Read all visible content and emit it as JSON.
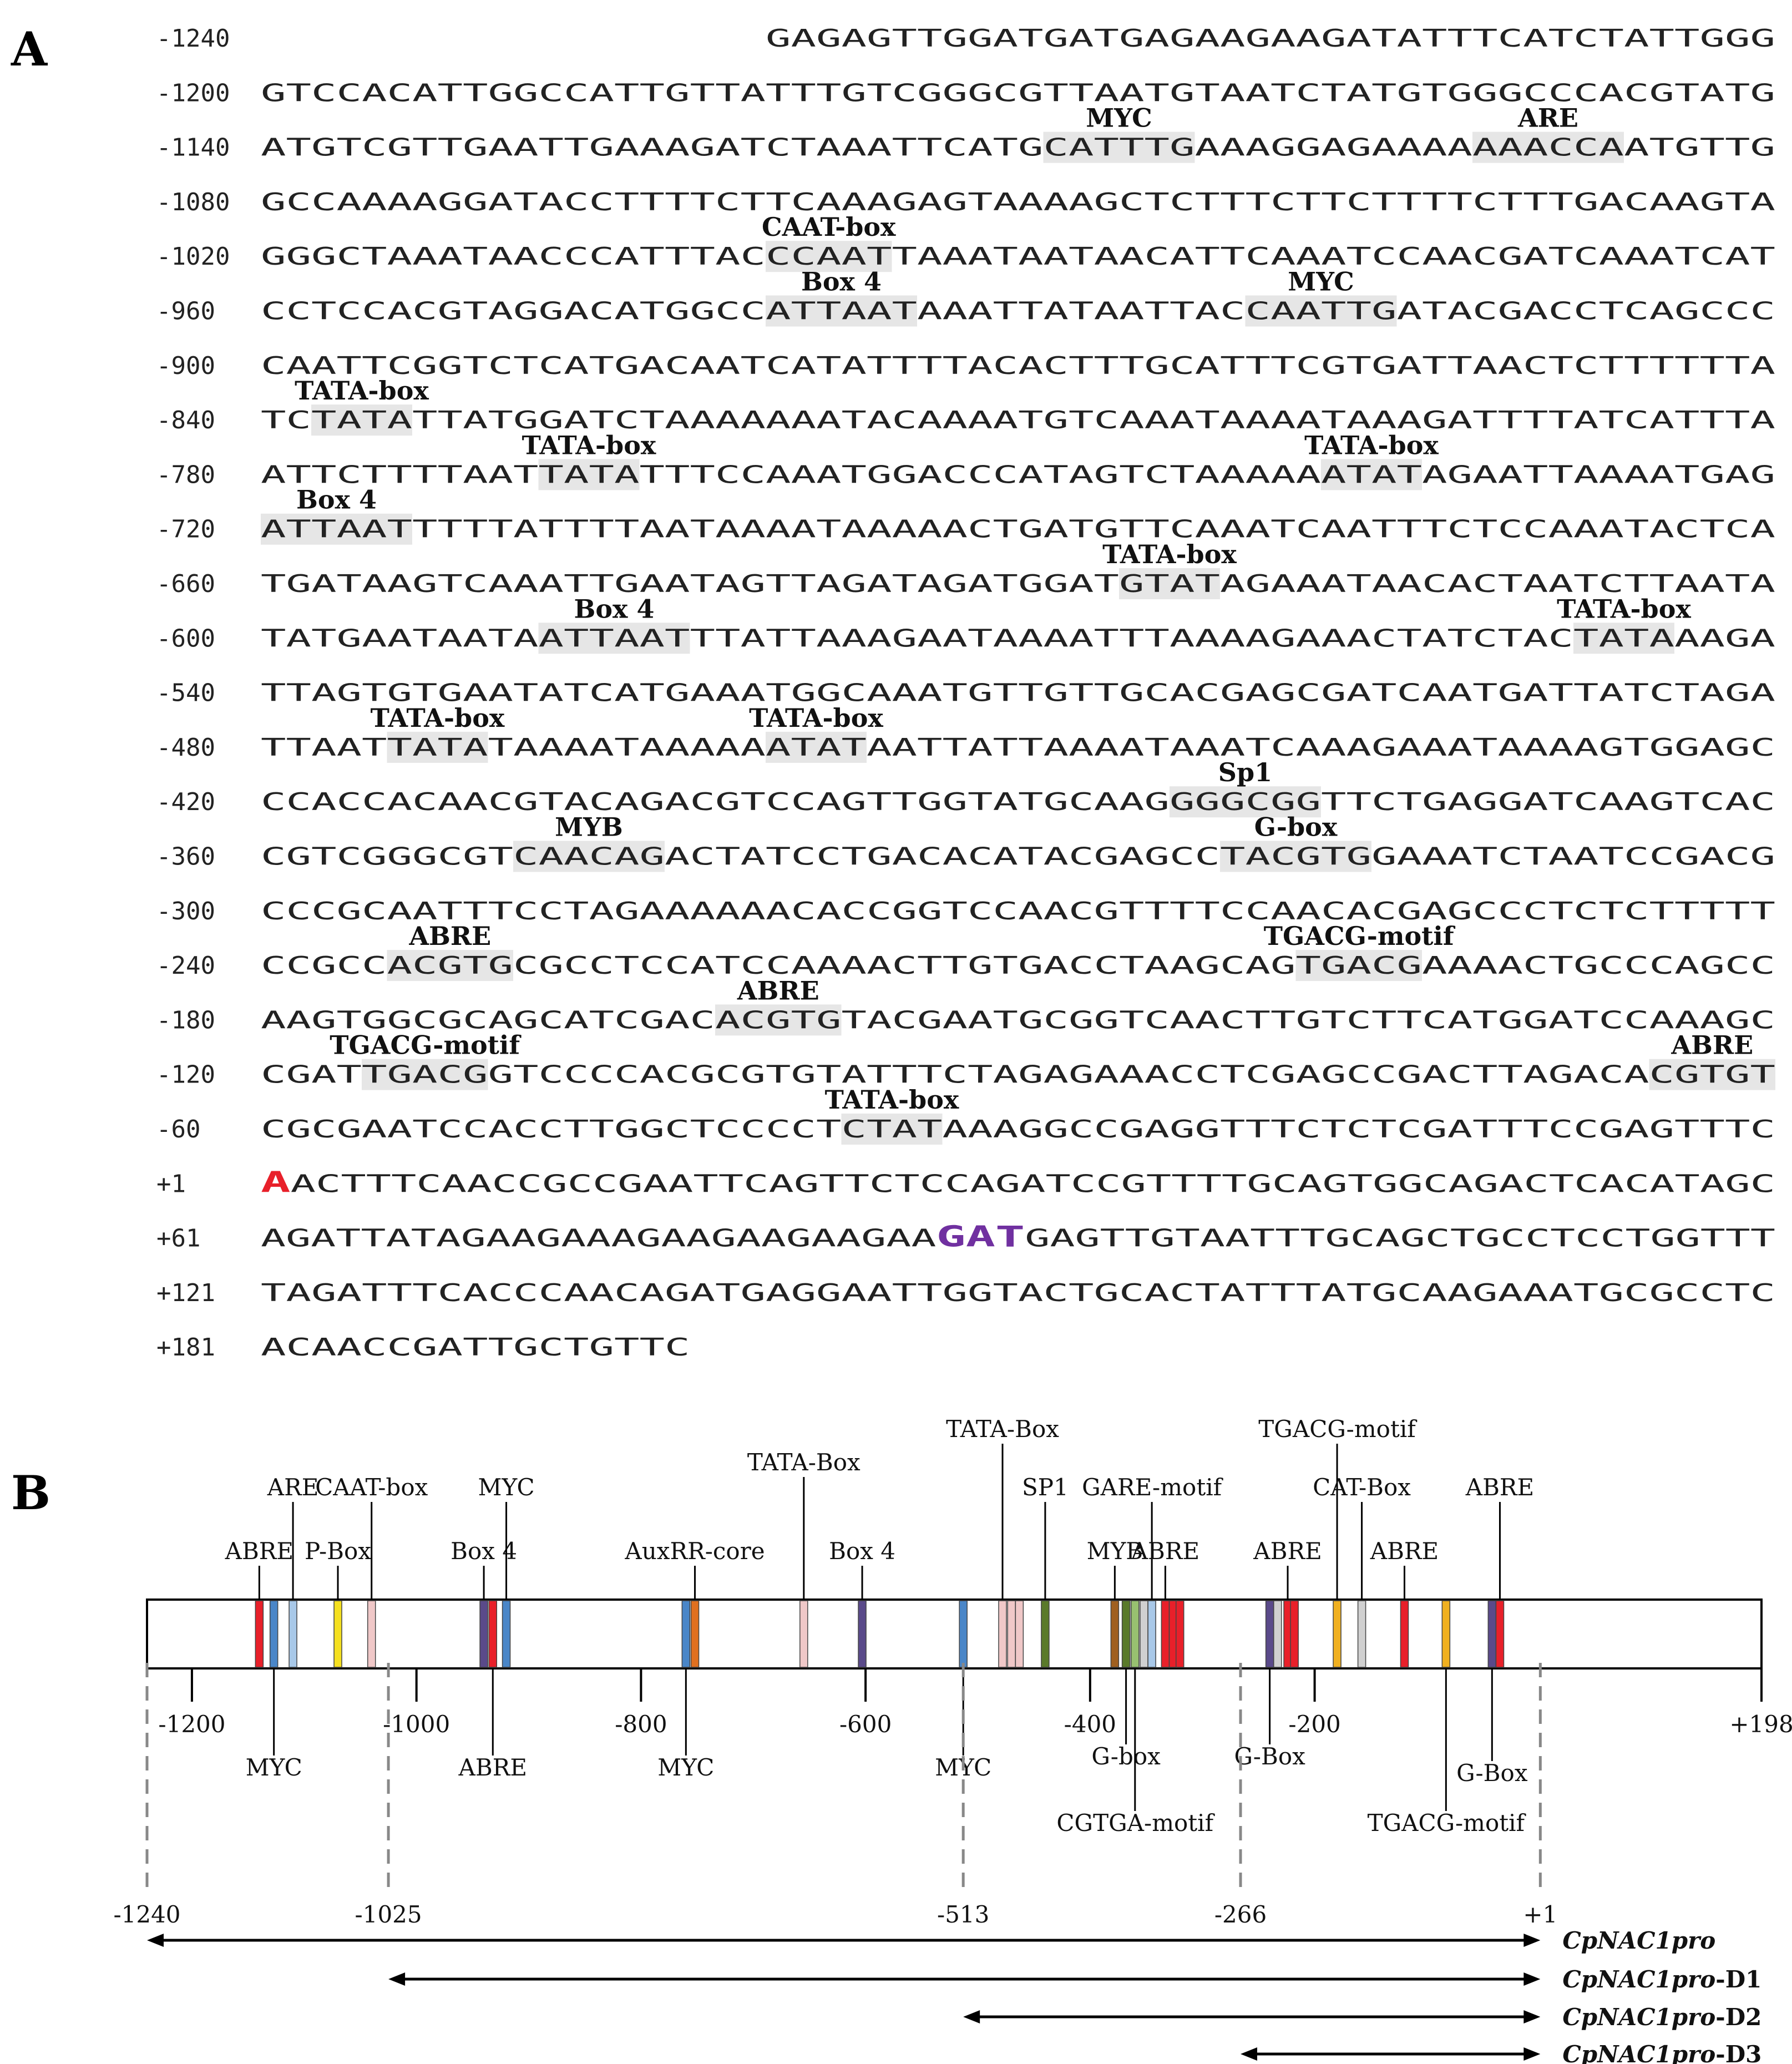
{
  "panel_a": {
    "label": "A",
    "lines": [
      {
        "num": "-1240",
        "seq": "GAGAGTTGGATGATGAGAAGAAGATATTTCATCTATTGGG",
        "offset": 20,
        "boxes": []
      },
      {
        "num": "-1200",
        "seq": "GTCCACATTGGCCATTGTTATTTGTCGGGCGTTAATGTAATCTATGTGGGCCCACGTATG",
        "offset": 0,
        "boxes": []
      },
      {
        "num": "-1140",
        "seq": "ATGTCGTTGAATTGAAAGATCTAAATTCATGCATTTGAAAGGAGAAAAAAACCAATGTTG",
        "offset": 0,
        "boxes": [
          {
            "start": 31,
            "len": 6,
            "label": "MYC"
          },
          {
            "start": 48,
            "len": 6,
            "label": "ARE"
          }
        ]
      },
      {
        "num": "-1080",
        "seq": "GCCAAAAGGATACCTTTTCTTCAAAGAGTAAAAGCTCTTTCTTCTTTTCTTTGACAAGTA",
        "offset": 0,
        "boxes": []
      },
      {
        "num": "-1020",
        "seq": "GGGCTAAATAACCCATTTACCCAATTAAATAATAACATTCAAATCCAACGATCAAATCAT",
        "offset": 0,
        "boxes": [
          {
            "start": 20,
            "len": 5,
            "label": "CAAT-box"
          }
        ]
      },
      {
        "num": "-960",
        "seq": "CCTCCACGTAGGACATGGCCATTAATAAATTATAATTACCAATTGATACGACCTCAGCCC",
        "offset": 0,
        "boxes": [
          {
            "start": 20,
            "len": 6,
            "label": "Box 4"
          },
          {
            "start": 39,
            "len": 6,
            "label": "MYC"
          }
        ]
      },
      {
        "num": "-900",
        "seq": "CAATTCGGTCTCATGACAATCATATTTTACACTTTGCATTTCGTGATTAACTCTTTTTTA",
        "offset": 0,
        "boxes": []
      },
      {
        "num": "-840",
        "seq": "TCTATATTATGGATCTAAAAAAATACAAAATGTCAAATAAAATAAAGATTTTATCATTTA",
        "offset": 0,
        "boxes": [
          {
            "start": 2,
            "len": 4,
            "label": "TATA-box"
          }
        ]
      },
      {
        "num": "-780",
        "seq": "ATTCTTTTAATTATATTTCCAAATGGACCCATAGTCTAAAAAATATAGAATTAAAATGAG",
        "offset": 0,
        "boxes": [
          {
            "start": 11,
            "len": 4,
            "label": "TATA-box"
          },
          {
            "start": 42,
            "len": 4,
            "label": "TATA-box"
          }
        ]
      },
      {
        "num": "-720",
        "seq": "ATTAATTTTTATTTTAATAAAATAAAAACTGATGTTCAAATCAATTTCTCCAAATACTCA",
        "offset": 0,
        "boxes": [
          {
            "start": 0,
            "len": 6,
            "label": "Box 4"
          }
        ]
      },
      {
        "num": "-660",
        "seq": "TGATAAGTCAAATTGAATAGTTAGATAGATGGATGTATAGAAATAACACTAATCTTAATA",
        "offset": 0,
        "boxes": [
          {
            "start": 34,
            "len": 4,
            "label": "TATA-box"
          }
        ]
      },
      {
        "num": "-600",
        "seq": "TATGAATAATAATTAATTTATTAAAGAATAAAATTTAAAAGAAACTATCTACTATAAAGA",
        "offset": 0,
        "boxes": [
          {
            "start": 11,
            "len": 6,
            "label": "Box 4"
          },
          {
            "start": 52,
            "len": 4,
            "label": "TATA-box"
          }
        ]
      },
      {
        "num": "-540",
        "seq": "TTAGTGTGAATATCATGAAATGGCAAATGTTGTTGCACGAGCGATCAATGATTATCTAGA",
        "offset": 0,
        "boxes": []
      },
      {
        "num": "-480",
        "seq": "TTAATTATATAAAATAAAAAATATAATTATTAAAATAAATCAAAGAAATAAAAGTGGAGC",
        "offset": 0,
        "boxes": [
          {
            "start": 5,
            "len": 4,
            "label": "TATA-box"
          },
          {
            "start": 20,
            "len": 4,
            "label": "TATA-box"
          }
        ]
      },
      {
        "num": "-420",
        "seq": "CCACCACAACGTACAGACGTCCAGTTGGTATGCAAGGGGCGGTTCTGAGGATCAAGTCAC",
        "offset": 0,
        "boxes": [
          {
            "start": 36,
            "len": 6,
            "label": "Sp1"
          }
        ]
      },
      {
        "num": "-360",
        "seq": "CGTCGGGCGTCAACAGACTATCCTGACACATACGAGCCTACGTGGAAATCTAATCCGACG",
        "offset": 0,
        "boxes": [
          {
            "start": 10,
            "len": 6,
            "label": "MYB"
          },
          {
            "start": 38,
            "len": 6,
            "label": "G-box"
          }
        ]
      },
      {
        "num": "-300",
        "seq": "CCCGCAATTTCCTAGAAAAAACACCGGTCCAACGTTTTCCAACACGAGCCCTCTCTTTTT",
        "offset": 0,
        "boxes": []
      },
      {
        "num": "-240",
        "seq": "CCGCCACGTGCGCCTCCATCCAAAACTTGTGACCTAAGCAGTGACGAAAACTGCCCAGCC",
        "offset": 0,
        "boxes": [
          {
            "start": 5,
            "len": 5,
            "label": "ABRE"
          },
          {
            "start": 41,
            "len": 5,
            "label": "TGACG-motif"
          }
        ]
      },
      {
        "num": "-180",
        "seq": "AAGTGGCGCAGCATCGACACGTGTACGAATGCGGTCAACTTGTCTTCATGGATCCAAAGC",
        "offset": 0,
        "boxes": [
          {
            "start": 18,
            "len": 5,
            "label": "ABRE"
          }
        ]
      },
      {
        "num": "-120",
        "seq": "CGATTGACGGTCCCCACGCGTGTATTTCTAGAGAAACCTCGAGCCGACTTAGACACGTGT",
        "offset": 0,
        "boxes": [
          {
            "start": 4,
            "len": 5,
            "label": "TGACG-motif"
          },
          {
            "start": 55,
            "len": 5,
            "label": "ABRE"
          }
        ]
      },
      {
        "num": "-60",
        "seq": "CGCGAATCCACCTTGGCTCCCCTCTATAAAGGCCGAGGTTTCTCTCGATTTCCGAGTTTC",
        "offset": 0,
        "boxes": [
          {
            "start": 23,
            "len": 4,
            "label": "TATA-box"
          }
        ]
      },
      {
        "num": "+1",
        "seq": "AACTTTCAACCGCCGAATTCAGTTCTCCAGATCCGTTTTGCAGTGGCAGACTCACATAGC",
        "offset": 0,
        "boxes": [],
        "red": 0
      },
      {
        "num": "+61",
        "seq": "AGATTATAGAAGAAAGAAGAAGAAGAAGATGAGTTGTAATTTGCAGCTGCCTCCTGGTTT",
        "offset": 0,
        "boxes": [],
        "purple": [
          27,
          3
        ]
      },
      {
        "num": "+121",
        "seq": "TAGATTTCACCCAACAGATGAGGAATTGGTACTGCACTATTTATGCAAGAAATGCGCCTC",
        "offset": 0,
        "boxes": []
      },
      {
        "num": "+181",
        "seq": "ACAACCGATTGCTGTTC",
        "offset": 0,
        "boxes": []
      }
    ]
  },
  "panel_b": {
    "label": "B",
    "axis_ticks": [
      "-1200",
      "-1000",
      "-800",
      "-600",
      "-400",
      "-200",
      "+198"
    ],
    "range_start": -1240,
    "range_end": 198,
    "elements": [
      {
        "name": "ABRE",
        "pos": -1140,
        "color": "#e8202a",
        "side": "top",
        "level": 2
      },
      {
        "name": "MYC",
        "pos": -1127,
        "color": "#4a86c8",
        "side": "bottom",
        "level": 0
      },
      {
        "name": "ARE",
        "pos": -1110,
        "color": "#a8c8e8",
        "side": "top",
        "level": 3
      },
      {
        "name": "P-Box",
        "pos": -1070,
        "color": "#f5e020",
        "side": "top",
        "level": 2
      },
      {
        "name": "CAAT-box",
        "pos": -1040,
        "color": "#f0c8c8",
        "side": "top",
        "level": 3
      },
      {
        "name": "Box 4",
        "pos": -940,
        "color": "#5a4a8a",
        "side": "top",
        "level": 2
      },
      {
        "name": "ABRE",
        "pos": -932,
        "color": "#e8202a",
        "side": "bottom",
        "level": 0
      },
      {
        "name": "MYC",
        "pos": -920,
        "color": "#4a86c8",
        "side": "top",
        "level": 3
      },
      {
        "name": "MYC",
        "pos": -760,
        "color": "#4a86c8",
        "side": "bottom",
        "level": 0
      },
      {
        "name": "AuxRR-core",
        "pos": -752,
        "color": "#e07020",
        "side": "top",
        "level": 2
      },
      {
        "name": "TATA-Box",
        "pos": -655,
        "color": "#f0c8c8",
        "side": "top",
        "level": 4
      },
      {
        "name": "Box 4",
        "pos": -603,
        "color": "#5a4a8a",
        "side": "top",
        "level": 2
      },
      {
        "name": "MYC",
        "pos": -513,
        "color": "#4a86c8",
        "side": "bottom",
        "level": 0
      },
      {
        "name": "TATA-Box",
        "pos": -478,
        "color": "#f0c8c8",
        "side": "top",
        "level": 5
      },
      {
        "name": "",
        "pos": -470,
        "color": "#f0c8c8",
        "side": "none",
        "level": 0
      },
      {
        "name": "",
        "pos": -463,
        "color": "#f0c8c8",
        "side": "none",
        "level": 0
      },
      {
        "name": "SP1",
        "pos": -440,
        "color": "#5a7a2a",
        "side": "top",
        "level": 3
      },
      {
        "name": "MYB",
        "pos": -378,
        "color": "#a06020",
        "side": "top",
        "level": 2
      },
      {
        "name": "G-box",
        "pos": -368,
        "color": "#5a7a2a",
        "side": "bottom",
        "level": 1
      },
      {
        "name": "CGTGA-motif",
        "pos": -360,
        "color": "#98c070",
        "side": "bottom",
        "level": 3
      },
      {
        "name": "",
        "pos": -352,
        "color": "#d0d0d0",
        "side": "none",
        "level": 0
      },
      {
        "name": "GARE-motif",
        "pos": -345,
        "color": "#a8c8e8",
        "side": "top",
        "level": 3
      },
      {
        "name": "ABRE",
        "pos": -333,
        "color": "#e8202a",
        "side": "top",
        "level": 2
      },
      {
        "name": "",
        "pos": -326,
        "color": "#e8202a",
        "side": "none",
        "level": 0
      },
      {
        "name": "",
        "pos": -320,
        "color": "#e8202a",
        "side": "none",
        "level": 0
      },
      {
        "name": "G-Box",
        "pos": -240,
        "color": "#5a4a8a",
        "side": "bottom",
        "level": 1
      },
      {
        "name": "",
        "pos": -233,
        "color": "#d0d0d0",
        "side": "none",
        "level": 0
      },
      {
        "name": "ABRE",
        "pos": -224,
        "color": "#e8202a",
        "side": "top",
        "level": 2
      },
      {
        "name": "",
        "pos": -218,
        "color": "#e8202a",
        "side": "none",
        "level": 0
      },
      {
        "name": "TGACG-motif",
        "pos": -180,
        "color": "#f0b020",
        "side": "top",
        "level": 5
      },
      {
        "name": "CAT-Box",
        "pos": -158,
        "color": "#d0d0d0",
        "side": "top",
        "level": 3
      },
      {
        "name": "ABRE",
        "pos": -120,
        "color": "#e8202a",
        "side": "top",
        "level": 2
      },
      {
        "name": "TGACG-motif",
        "pos": -83,
        "color": "#f0b020",
        "side": "bottom",
        "level": 3
      },
      {
        "name": "G-Box",
        "pos": -42,
        "color": "#5a4a8a",
        "side": "bottom",
        "level": 2
      },
      {
        "name": "ABRE",
        "pos": -35,
        "color": "#e8202a",
        "side": "top",
        "level": 3
      }
    ],
    "deletion_points": [
      "-1240",
      "-1025",
      "-513",
      "-266",
      "+1"
    ],
    "constructs": [
      {
        "name": "CpNAC1pro",
        "suffix": "",
        "start": "-1240"
      },
      {
        "name": "CpNAC1pro",
        "suffix": "-D1",
        "start": "-1025"
      },
      {
        "name": "CpNAC1pro",
        "suffix": "-D2",
        "start": "-513"
      },
      {
        "name": "CpNAC1pro",
        "suffix": "-D3",
        "start": "-266"
      }
    ]
  }
}
